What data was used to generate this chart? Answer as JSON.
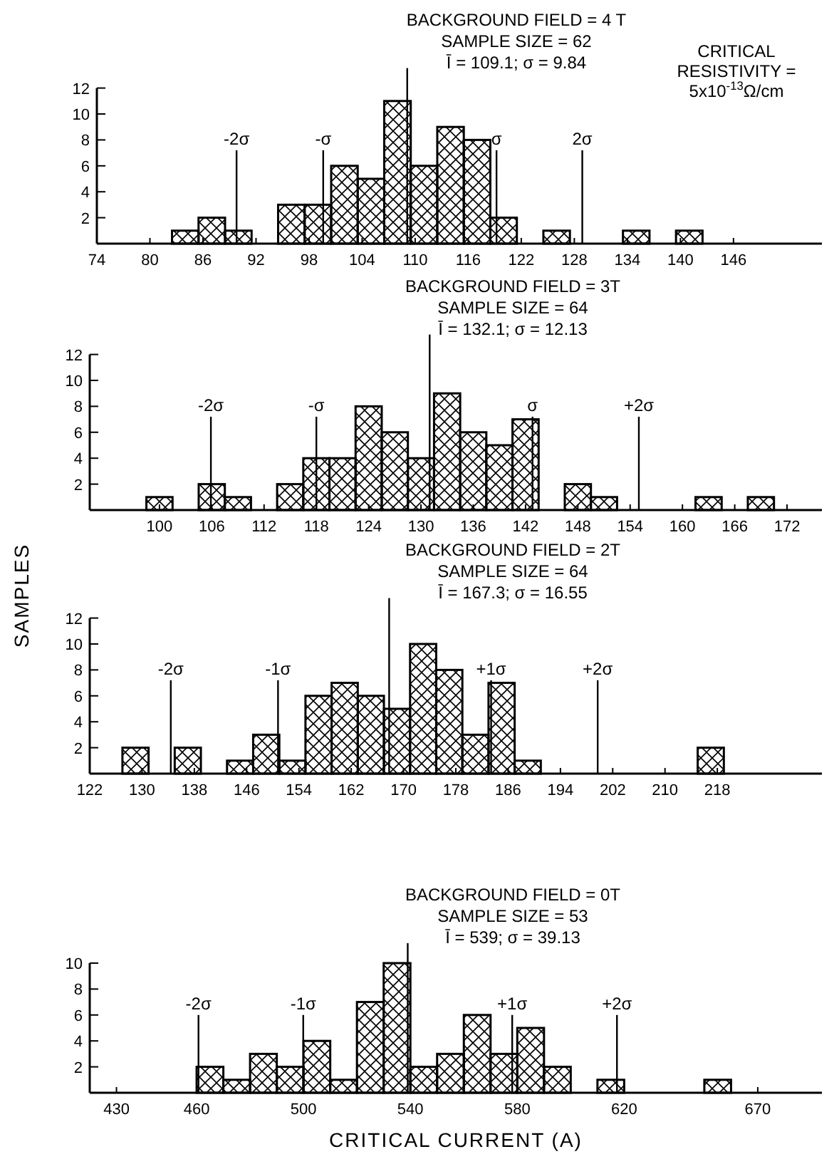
{
  "chart_data": [
    {
      "type": "histogram",
      "title": "BACKGROUND FIELD = 4 T",
      "subtitle": "SAMPLE SIZE = 62",
      "annotations": [
        "Ī = 109.1; σ = 9.84",
        "CRITICAL RESISTIVITY = 5x10$^{-13}$Ω/cm"
      ],
      "bins": [
        82.5,
        85.5,
        88.5,
        91.5,
        94.5,
        97.5,
        100.5,
        103.5,
        106.5,
        109.5,
        112.5,
        115.5,
        118.5,
        121.5,
        124.5,
        127.5,
        130.5,
        133.5,
        136.5,
        139.5,
        142.5
      ],
      "values": [
        1,
        2,
        1,
        0,
        3,
        3,
        6,
        5,
        11,
        6,
        9,
        8,
        2,
        0,
        1,
        0,
        0,
        1,
        0,
        1
      ],
      "color": "#000000",
      "xlim": [
        74,
        156
      ],
      "xticks": [
        74,
        80,
        86,
        92,
        98,
        104,
        110,
        116,
        122,
        128,
        134,
        140,
        146
      ],
      "ylim": [
        0,
        12
      ],
      "yticks": [
        2,
        4,
        6,
        8,
        10,
        12
      ],
      "ref_lines": [
        {
          "axis": "x",
          "value": 89.8,
          "label": "-2σ"
        },
        {
          "axis": "x",
          "value": 99.6,
          "label": "-σ"
        },
        {
          "axis": "x",
          "value": 109.1,
          "label": null
        },
        {
          "axis": "x",
          "value": 119.2,
          "label": "σ"
        },
        {
          "axis": "x",
          "value": 128.9,
          "label": "2σ"
        }
      ]
    },
    {
      "type": "histogram",
      "title": "BACKGROUND FIELD = 3T",
      "subtitle": "SAMPLE SIZE = 64",
      "annotations": [
        "Ī = 132.1; σ = 12.13"
      ],
      "ylabel": "SAMPLES",
      "bins": [
        98.5,
        101.5,
        104.5,
        107.5,
        110.5,
        113.5,
        116.5,
        119.5,
        122.5,
        125.5,
        128.5,
        131.5,
        134.5,
        137.5,
        140.5,
        143.5,
        146.5,
        149.5,
        152.5,
        155.5,
        158.5,
        161.5,
        164.5,
        167.5,
        170.5
      ],
      "values": [
        1,
        0,
        2,
        1,
        0,
        2,
        4,
        4,
        8,
        6,
        4,
        9,
        6,
        5,
        7,
        0,
        2,
        1,
        0,
        0,
        0,
        1,
        0,
        1
      ],
      "color": "#000000",
      "xlim": [
        92,
        176
      ],
      "xticks": [
        100,
        106,
        112,
        118,
        124,
        130,
        136,
        142,
        148,
        154,
        160,
        166,
        172
      ],
      "ylim": [
        0,
        12
      ],
      "yticks": [
        2,
        4,
        6,
        8,
        10,
        12
      ],
      "ref_lines": [
        {
          "axis": "x",
          "value": 105.9,
          "label": "-2σ"
        },
        {
          "axis": "x",
          "value": 118,
          "label": "-σ"
        },
        {
          "axis": "x",
          "value": 131,
          "label": null
        },
        {
          "axis": "x",
          "value": 142.8,
          "label": "σ"
        },
        {
          "axis": "x",
          "value": 155,
          "label": "+2σ"
        }
      ]
    },
    {
      "type": "histogram",
      "title": "BACKGROUND FIELD = 2T",
      "subtitle": "SAMPLE SIZE = 64",
      "annotations": [
        "Ī = 167.3; σ = 16.55"
      ],
      "bins": [
        127,
        131,
        135,
        139,
        143,
        147,
        151,
        155,
        159,
        163,
        167,
        171,
        175,
        179,
        183,
        187,
        191,
        195,
        199,
        203,
        207,
        211,
        215,
        219
      ],
      "values": [
        2,
        0,
        2,
        0,
        1,
        3,
        1,
        6,
        7,
        6,
        5,
        10,
        8,
        3,
        7,
        1,
        0,
        0,
        0,
        0,
        0,
        0,
        2
      ],
      "color": "#000000",
      "xlim": [
        122,
        234
      ],
      "xticks": [
        122,
        130,
        138,
        146,
        154,
        162,
        170,
        178,
        186,
        194,
        202,
        210,
        218
      ],
      "ylim": [
        0,
        12
      ],
      "yticks": [
        2,
        4,
        6,
        8,
        10,
        12
      ],
      "ref_lines": [
        {
          "axis": "x",
          "value": 134.4,
          "label": "-2σ"
        },
        {
          "axis": "x",
          "value": 150.8,
          "label": "-1σ"
        },
        {
          "axis": "x",
          "value": 167.8,
          "label": null
        },
        {
          "axis": "x",
          "value": 183.4,
          "label": "+1σ"
        },
        {
          "axis": "x",
          "value": 199.7,
          "label": "+2σ"
        }
      ]
    },
    {
      "type": "histogram",
      "title": "BACKGROUND FIELD = 0T",
      "subtitle": "SAMPLE SIZE = 53",
      "annotations": [
        "Ī = 539; σ = 39.13"
      ],
      "xlabel": "CRITICAL CURRENT (A)",
      "bins": [
        460,
        470,
        480,
        490,
        500,
        510,
        520,
        530,
        540,
        550,
        560,
        570,
        580,
        590,
        600,
        610,
        620,
        630,
        640,
        650,
        660
      ],
      "values": [
        2,
        1,
        3,
        2,
        4,
        1,
        7,
        10,
        2,
        3,
        6,
        3,
        5,
        2,
        0,
        1,
        0,
        0,
        0,
        1
      ],
      "color": "#000000",
      "xlim": [
        420,
        694
      ],
      "xticks": [
        430,
        460,
        500,
        540,
        580,
        620,
        670
      ],
      "ylim": [
        0,
        10
      ],
      "yticks": [
        2,
        4,
        6,
        8,
        10
      ],
      "ref_lines": [
        {
          "axis": "x",
          "value": 460.7,
          "label": "-2σ"
        },
        {
          "axis": "x",
          "value": 499.9,
          "label": "-1σ"
        },
        {
          "axis": "x",
          "value": 539,
          "label": null
        },
        {
          "axis": "x",
          "value": 578.1,
          "label": "+1σ"
        },
        {
          "axis": "x",
          "value": 617.3,
          "label": "+2σ"
        }
      ]
    }
  ]
}
